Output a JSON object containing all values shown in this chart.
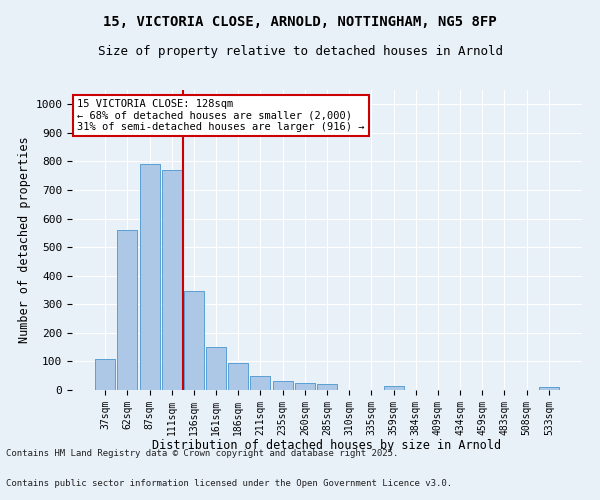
{
  "title_line1": "15, VICTORIA CLOSE, ARNOLD, NOTTINGHAM, NG5 8FP",
  "title_line2": "Size of property relative to detached houses in Arnold",
  "xlabel": "Distribution of detached houses by size in Arnold",
  "ylabel": "Number of detached properties",
  "categories": [
    "37sqm",
    "62sqm",
    "87sqm",
    "111sqm",
    "136sqm",
    "161sqm",
    "186sqm",
    "211sqm",
    "235sqm",
    "260sqm",
    "285sqm",
    "310sqm",
    "335sqm",
    "359sqm",
    "384sqm",
    "409sqm",
    "434sqm",
    "459sqm",
    "483sqm",
    "508sqm",
    "533sqm"
  ],
  "values": [
    110,
    560,
    790,
    770,
    345,
    150,
    95,
    50,
    30,
    25,
    20,
    0,
    0,
    15,
    0,
    0,
    0,
    0,
    0,
    0,
    10
  ],
  "bar_color": "#adc8e6",
  "bar_edge_color": "#5a9fd4",
  "vline_x_index": 3.5,
  "annotation_title": "15 VICTORIA CLOSE: 128sqm",
  "annotation_line1": "← 68% of detached houses are smaller (2,000)",
  "annotation_line2": "31% of semi-detached houses are larger (916) →",
  "annotation_box_color": "#ffffff",
  "annotation_box_edge_color": "#cc0000",
  "vline_color": "#cc0000",
  "background_color": "#e8f0f8",
  "grid_color": "#ffffff",
  "footnote_line1": "Contains HM Land Registry data © Crown copyright and database right 2025.",
  "footnote_line2": "Contains public sector information licensed under the Open Government Licence v3.0.",
  "ylim": [
    0,
    1050
  ],
  "yticks": [
    0,
    100,
    200,
    300,
    400,
    500,
    600,
    700,
    800,
    900,
    1000
  ]
}
